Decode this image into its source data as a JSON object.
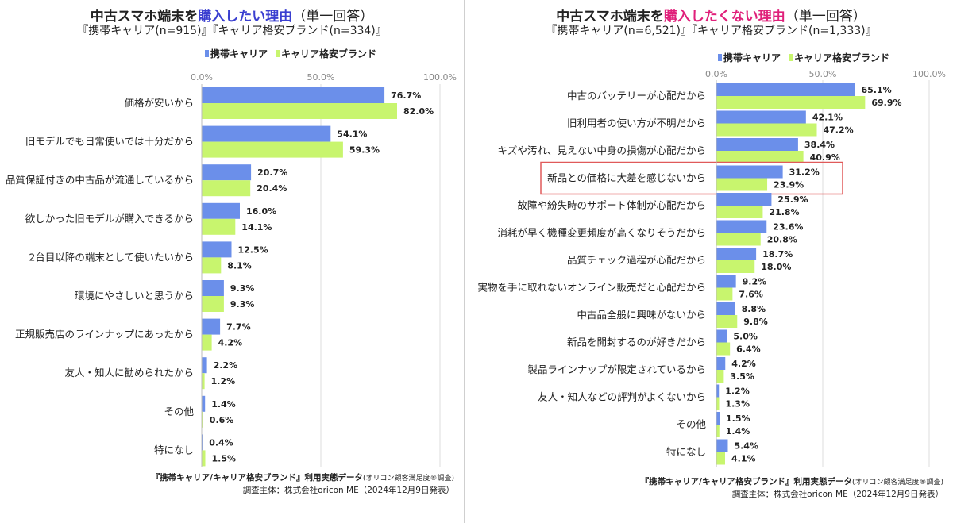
{
  "colors": {
    "carrier": "#6B8FEA",
    "mvno": "#C8F56E",
    "highlight_box": "#E05A5A",
    "axis_text": "#888888"
  },
  "legend": {
    "carrier": "携帯キャリア",
    "mvno": "キャリア格安ブランド"
  },
  "footer": {
    "line1_bold": "『携帯キャリア/キャリア格安ブランド』利用実態データ",
    "line1_small": "(オリコン顧客満足度®調査)",
    "line2": "調査主体：株式会社oricon ME（2024年12月9日発表）"
  },
  "chart_data": [
    {
      "type": "bar",
      "orientation": "horizontal",
      "title_prefix": "中古スマホ端末を",
      "title_accent": "購入したい理由",
      "title_accent_color": "#3A3FD0",
      "title_suffix": "（単一回答）",
      "subtitle": "『携帯キャリア(n=915)』『キャリア格安ブランド(n=334)』",
      "x_ticks": [
        "0.0%",
        "50.0%",
        "100.0%"
      ],
      "xlim": [
        0,
        100
      ],
      "categories": [
        "価格が安いから",
        "旧モデルでも日常使いでは十分だから",
        "品質保証付きの中古品が流通しているから",
        "欲しかった旧モデルが購入できるから",
        "2台目以降の端末として使いたいから",
        "環境にやさしいと思うから",
        "正規販売店のラインナップにあったから",
        "友人・知人に勧められたから",
        "その他",
        "特になし"
      ],
      "series": [
        {
          "name": "携帯キャリア",
          "values": [
            76.7,
            54.1,
            20.7,
            16.0,
            12.5,
            9.3,
            7.7,
            2.2,
            1.4,
            0.4
          ],
          "labels": [
            "76.7%",
            "54.1%",
            "20.7%",
            "16.0%",
            "12.5%",
            "9.3%",
            "7.7%",
            "2.2%",
            "1.4%",
            "0.4%"
          ]
        },
        {
          "name": "キャリア格安ブランド",
          "values": [
            82.0,
            59.3,
            20.4,
            14.1,
            8.1,
            9.3,
            4.2,
            1.2,
            0.6,
            1.5
          ],
          "labels": [
            "82.0%",
            "59.3%",
            "20.4%",
            "14.1%",
            "8.1%",
            "9.3%",
            "4.2%",
            "1.2%",
            "0.6%",
            "1.5%"
          ]
        }
      ],
      "highlight_index": null
    },
    {
      "type": "bar",
      "orientation": "horizontal",
      "title_prefix": "中古スマホ端末を",
      "title_accent": "購入したくない理由",
      "title_accent_color": "#E0207A",
      "title_suffix": "（単一回答）",
      "subtitle": "『携帯キャリア(n=6,521)』『キャリア格安ブランド(n=1,333)』",
      "x_ticks": [
        "0.0%",
        "50.0%",
        "100.0%"
      ],
      "xlim": [
        0,
        100
      ],
      "categories": [
        "中古のバッテリーが心配だから",
        "旧利用者の使い方が不明だから",
        "キズや汚れ、見えない中身の損傷が心配だから",
        "新品との価格に大差を感じないから",
        "故障や紛失時のサポート体制が心配だから",
        "消耗が早く機種変更頻度が高くなりそうだから",
        "品質チェック過程が心配だから",
        "実物を手に取れないオンライン販売だと心配だから",
        "中古品全般に興味がないから",
        "新品を開封するのが好きだから",
        "製品ラインナップが限定されているから",
        "友人・知人などの評判がよくないから",
        "その他",
        "特になし"
      ],
      "series": [
        {
          "name": "携帯キャリア",
          "values": [
            65.1,
            42.1,
            38.4,
            31.2,
            25.9,
            23.6,
            18.7,
            9.2,
            8.8,
            5.0,
            4.2,
            1.2,
            1.5,
            5.4
          ],
          "labels": [
            "65.1%",
            "42.1%",
            "38.4%",
            "31.2%",
            "25.9%",
            "23.6%",
            "18.7%",
            "9.2%",
            "8.8%",
            "5.0%",
            "4.2%",
            "1.2%",
            "1.5%",
            "5.4%"
          ]
        },
        {
          "name": "キャリア格安ブランド",
          "values": [
            69.9,
            47.2,
            40.9,
            23.9,
            21.8,
            20.8,
            18.0,
            7.6,
            9.8,
            6.4,
            3.5,
            1.3,
            1.4,
            4.1
          ],
          "labels": [
            "69.9%",
            "47.2%",
            "40.9%",
            "23.9%",
            "21.8%",
            "20.8%",
            "18.0%",
            "7.6%",
            "9.8%",
            "6.4%",
            "3.5%",
            "1.3%",
            "1.4%",
            "4.1%"
          ]
        }
      ],
      "highlight_index": 3
    }
  ]
}
